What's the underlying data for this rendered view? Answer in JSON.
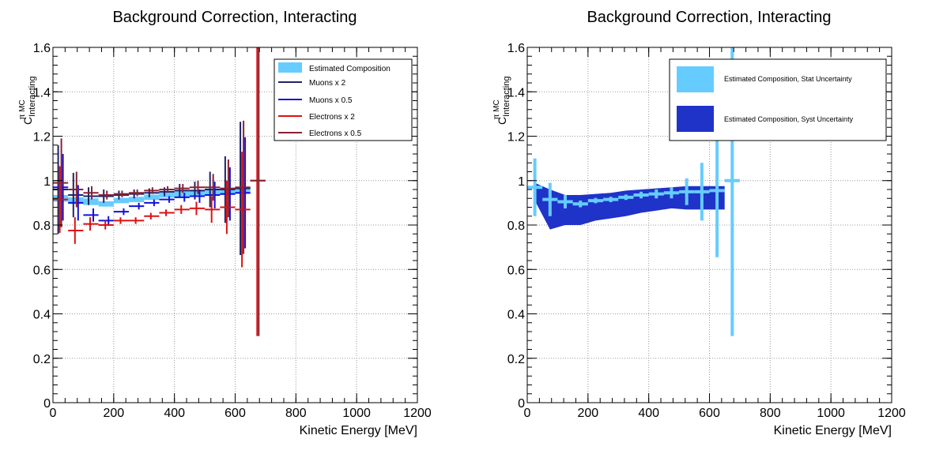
{
  "colors": {
    "est_comp": "#66ccff",
    "muons_x2": "#222266",
    "muons_x05": "#1111dd",
    "electrons_x2": "#dd1111",
    "electrons_x05": "#882233",
    "syst_band": "#1f33c8"
  },
  "chart_data": [
    {
      "type": "scatter",
      "title": "Background Correction, Interacting",
      "xlabel": "Kinetic Energy [MeV]",
      "ylabel": {
        "base": "C",
        "sup": "π MC",
        "sub": "Interacting"
      },
      "xlim": [
        0,
        1200
      ],
      "ylim": [
        0,
        1.6
      ],
      "xticks": [
        0,
        200,
        400,
        600,
        800,
        1000,
        1200
      ],
      "yticks": [
        0,
        0.2,
        0.4,
        0.6,
        0.8,
        1,
        1.2,
        1.4,
        1.6
      ],
      "grid": true,
      "legend": "top-right",
      "series": [
        {
          "name": "Estimated Composition",
          "color_key": "est_comp",
          "style": "bar",
          "x": [
            25,
            75,
            125,
            175,
            225,
            275,
            325,
            375,
            425,
            475,
            525,
            575,
            625
          ],
          "y": [
            0.92,
            0.91,
            0.905,
            0.895,
            0.91,
            0.915,
            0.925,
            0.935,
            0.94,
            0.945,
            0.945,
            0.95,
            0.955
          ],
          "yerr": [
            0.015,
            0.015,
            0.015,
            0.012,
            0.012,
            0.012,
            0.012,
            0.012,
            0.012,
            0.012,
            0.012,
            0.015,
            0.015
          ]
        },
        {
          "name": "Muons x 2",
          "color_key": "muons_x2",
          "style": "err",
          "x": [
            25,
            75,
            125,
            175,
            225,
            275,
            325,
            375,
            425,
            475,
            525,
            575,
            625
          ],
          "y": [
            0.96,
            0.935,
            0.93,
            0.93,
            0.935,
            0.94,
            0.945,
            0.95,
            0.955,
            0.955,
            0.96,
            0.96,
            0.965
          ],
          "yerr": [
            0.2,
            0.1,
            0.04,
            0.03,
            0.02,
            0.02,
            0.02,
            0.02,
            0.03,
            0.04,
            0.08,
            0.15,
            0.3
          ]
        },
        {
          "name": "Muons x 0.5",
          "color_key": "muons_x05",
          "style": "err",
          "x": [
            25,
            75,
            125,
            175,
            225,
            275,
            325,
            375,
            425,
            475,
            525,
            575,
            625
          ],
          "y": [
            0.97,
            0.9,
            0.845,
            0.82,
            0.86,
            0.885,
            0.9,
            0.915,
            0.925,
            0.93,
            0.935,
            0.94,
            0.945
          ],
          "yerr": [
            0.15,
            0.08,
            0.03,
            0.02,
            0.015,
            0.015,
            0.015,
            0.015,
            0.02,
            0.03,
            0.06,
            0.12,
            0.25
          ]
        },
        {
          "name": "Electrons x 2",
          "color_key": "electrons_x2",
          "style": "err",
          "x": [
            25,
            75,
            125,
            175,
            225,
            275,
            325,
            375,
            425,
            475,
            525,
            575,
            625,
            675
          ],
          "y": [
            0.915,
            0.775,
            0.805,
            0.8,
            0.82,
            0.82,
            0.84,
            0.855,
            0.87,
            0.875,
            0.87,
            0.88,
            0.87,
            1.0
          ],
          "yerr": [
            0.15,
            0.06,
            0.03,
            0.02,
            0.015,
            0.015,
            0.015,
            0.015,
            0.02,
            0.03,
            0.06,
            0.12,
            0.26,
            0.7
          ]
        },
        {
          "name": "Electrons x 0.5",
          "color_key": "electrons_x05",
          "style": "err",
          "x": [
            25,
            75,
            125,
            175,
            225,
            275,
            325,
            375,
            425,
            475,
            525,
            575,
            625,
            675
          ],
          "y": [
            0.99,
            0.96,
            0.945,
            0.935,
            0.94,
            0.945,
            0.955,
            0.96,
            0.965,
            0.97,
            0.97,
            0.965,
            0.97,
            1.0
          ],
          "yerr": [
            0.2,
            0.08,
            0.03,
            0.02,
            0.015,
            0.015,
            0.015,
            0.015,
            0.02,
            0.03,
            0.06,
            0.13,
            0.3,
            0.7
          ]
        }
      ]
    },
    {
      "type": "scatter",
      "title": "Background Correction, Interacting",
      "xlabel": "Kinetic Energy [MeV]",
      "ylabel": {
        "base": "C",
        "sup": "π MC",
        "sub": "Interacting"
      },
      "xlim": [
        0,
        1200
      ],
      "ylim": [
        0,
        1.6
      ],
      "xticks": [
        0,
        200,
        400,
        600,
        800,
        1000,
        1200
      ],
      "yticks": [
        0,
        0.2,
        0.4,
        0.6,
        0.8,
        1,
        1.2,
        1.4,
        1.6
      ],
      "grid": true,
      "legend": "top-right",
      "band": {
        "name": "Estimated Composition, Syst Uncertainty",
        "color_key": "syst_band",
        "x": [
          25,
          75,
          125,
          175,
          225,
          275,
          325,
          375,
          425,
          475,
          525,
          575,
          625,
          650
        ],
        "low": [
          0.91,
          0.78,
          0.8,
          0.8,
          0.82,
          0.83,
          0.84,
          0.855,
          0.865,
          0.875,
          0.87,
          0.87,
          0.87,
          0.87
        ],
        "high": [
          0.99,
          0.96,
          0.935,
          0.935,
          0.94,
          0.945,
          0.955,
          0.96,
          0.965,
          0.97,
          0.975,
          0.975,
          0.975,
          0.975
        ]
      },
      "series": [
        {
          "name": "Estimated Composition, Stat Uncertainty",
          "color_key": "est_comp",
          "style": "thick",
          "x": [
            25,
            75,
            125,
            175,
            225,
            275,
            325,
            375,
            425,
            475,
            525,
            575,
            625,
            675
          ],
          "y": [
            0.97,
            0.915,
            0.905,
            0.895,
            0.91,
            0.915,
            0.925,
            0.935,
            0.94,
            0.945,
            0.95,
            0.95,
            0.955,
            1.0
          ],
          "yerr": [
            0.13,
            0.075,
            0.03,
            0.015,
            0.012,
            0.012,
            0.012,
            0.015,
            0.02,
            0.025,
            0.06,
            0.13,
            0.3,
            0.7
          ]
        }
      ]
    }
  ]
}
